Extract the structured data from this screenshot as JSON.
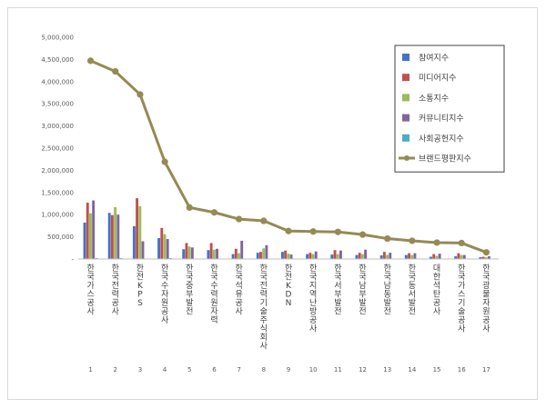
{
  "chart_data": {
    "type": "bar",
    "ylim": [
      0,
      5000000
    ],
    "yticks": [
      "-",
      "500,000",
      "1,000,000",
      "1,500,000",
      "2,000,000",
      "2,500,000",
      "3,000,000",
      "3,500,000",
      "4,000,000",
      "4,500,000",
      "5,000,000"
    ],
    "ytick_values": [
      0,
      500000,
      1000000,
      1500000,
      2000000,
      2500000,
      3000000,
      3500000,
      4000000,
      4500000,
      5000000
    ],
    "grid": false,
    "legend_position": "top-right",
    "categories": [
      "한국가스공사",
      "한국전력공사",
      "한전KPS",
      "한국수자원공사",
      "한국중부발전",
      "한국수력원자력",
      "한국석유공사",
      "한국전력기술주식회사",
      "한전KDN",
      "한국지역난방공사",
      "한국서부발전",
      "한국남부발전",
      "한국남동발전",
      "한국동서발전",
      "대한석탄공사",
      "한국가스기술공사",
      "한국광물자원공사"
    ],
    "numbers": [
      "1",
      "2",
      "3",
      "4",
      "5",
      "6",
      "7",
      "8",
      "9",
      "10",
      "11",
      "12",
      "13",
      "14",
      "15",
      "16",
      "17"
    ],
    "series": [
      {
        "name": "참여지수",
        "color": "#4472c4",
        "values": [
          820000,
          1040000,
          740000,
          470000,
          220000,
          200000,
          110000,
          140000,
          160000,
          110000,
          100000,
          90000,
          80000,
          90000,
          50000,
          60000,
          40000
        ]
      },
      {
        "name": "미디어지수",
        "color": "#c0504d",
        "values": [
          1270000,
          990000,
          1370000,
          700000,
          360000,
          360000,
          230000,
          160000,
          190000,
          140000,
          200000,
          140000,
          160000,
          130000,
          110000,
          130000,
          50000
        ]
      },
      {
        "name": "소통지수",
        "color": "#9bbb59",
        "values": [
          1030000,
          1170000,
          1190000,
          560000,
          280000,
          210000,
          130000,
          240000,
          120000,
          110000,
          110000,
          110000,
          90000,
          90000,
          70000,
          90000,
          40000
        ]
      },
      {
        "name": "커뮤니티지수",
        "color": "#8064a2",
        "values": [
          1320000,
          1000000,
          400000,
          450000,
          260000,
          230000,
          410000,
          310000,
          100000,
          170000,
          190000,
          210000,
          140000,
          130000,
          120000,
          90000,
          60000
        ]
      },
      {
        "name": "사회공헌지수",
        "color": "#4bacc6",
        "values": [
          20000,
          20000,
          10000,
          20000,
          10000,
          10000,
          10000,
          10000,
          10000,
          10000,
          10000,
          10000,
          10000,
          10000,
          10000,
          10000,
          10000
        ]
      }
    ],
    "line_series": {
      "name": "브랜드평판지수",
      "color": "#948a54",
      "values": [
        4470000,
        4230000,
        3710000,
        2190000,
        1160000,
        1050000,
        900000,
        860000,
        630000,
        620000,
        610000,
        550000,
        460000,
        410000,
        370000,
        360000,
        150000
      ]
    }
  }
}
